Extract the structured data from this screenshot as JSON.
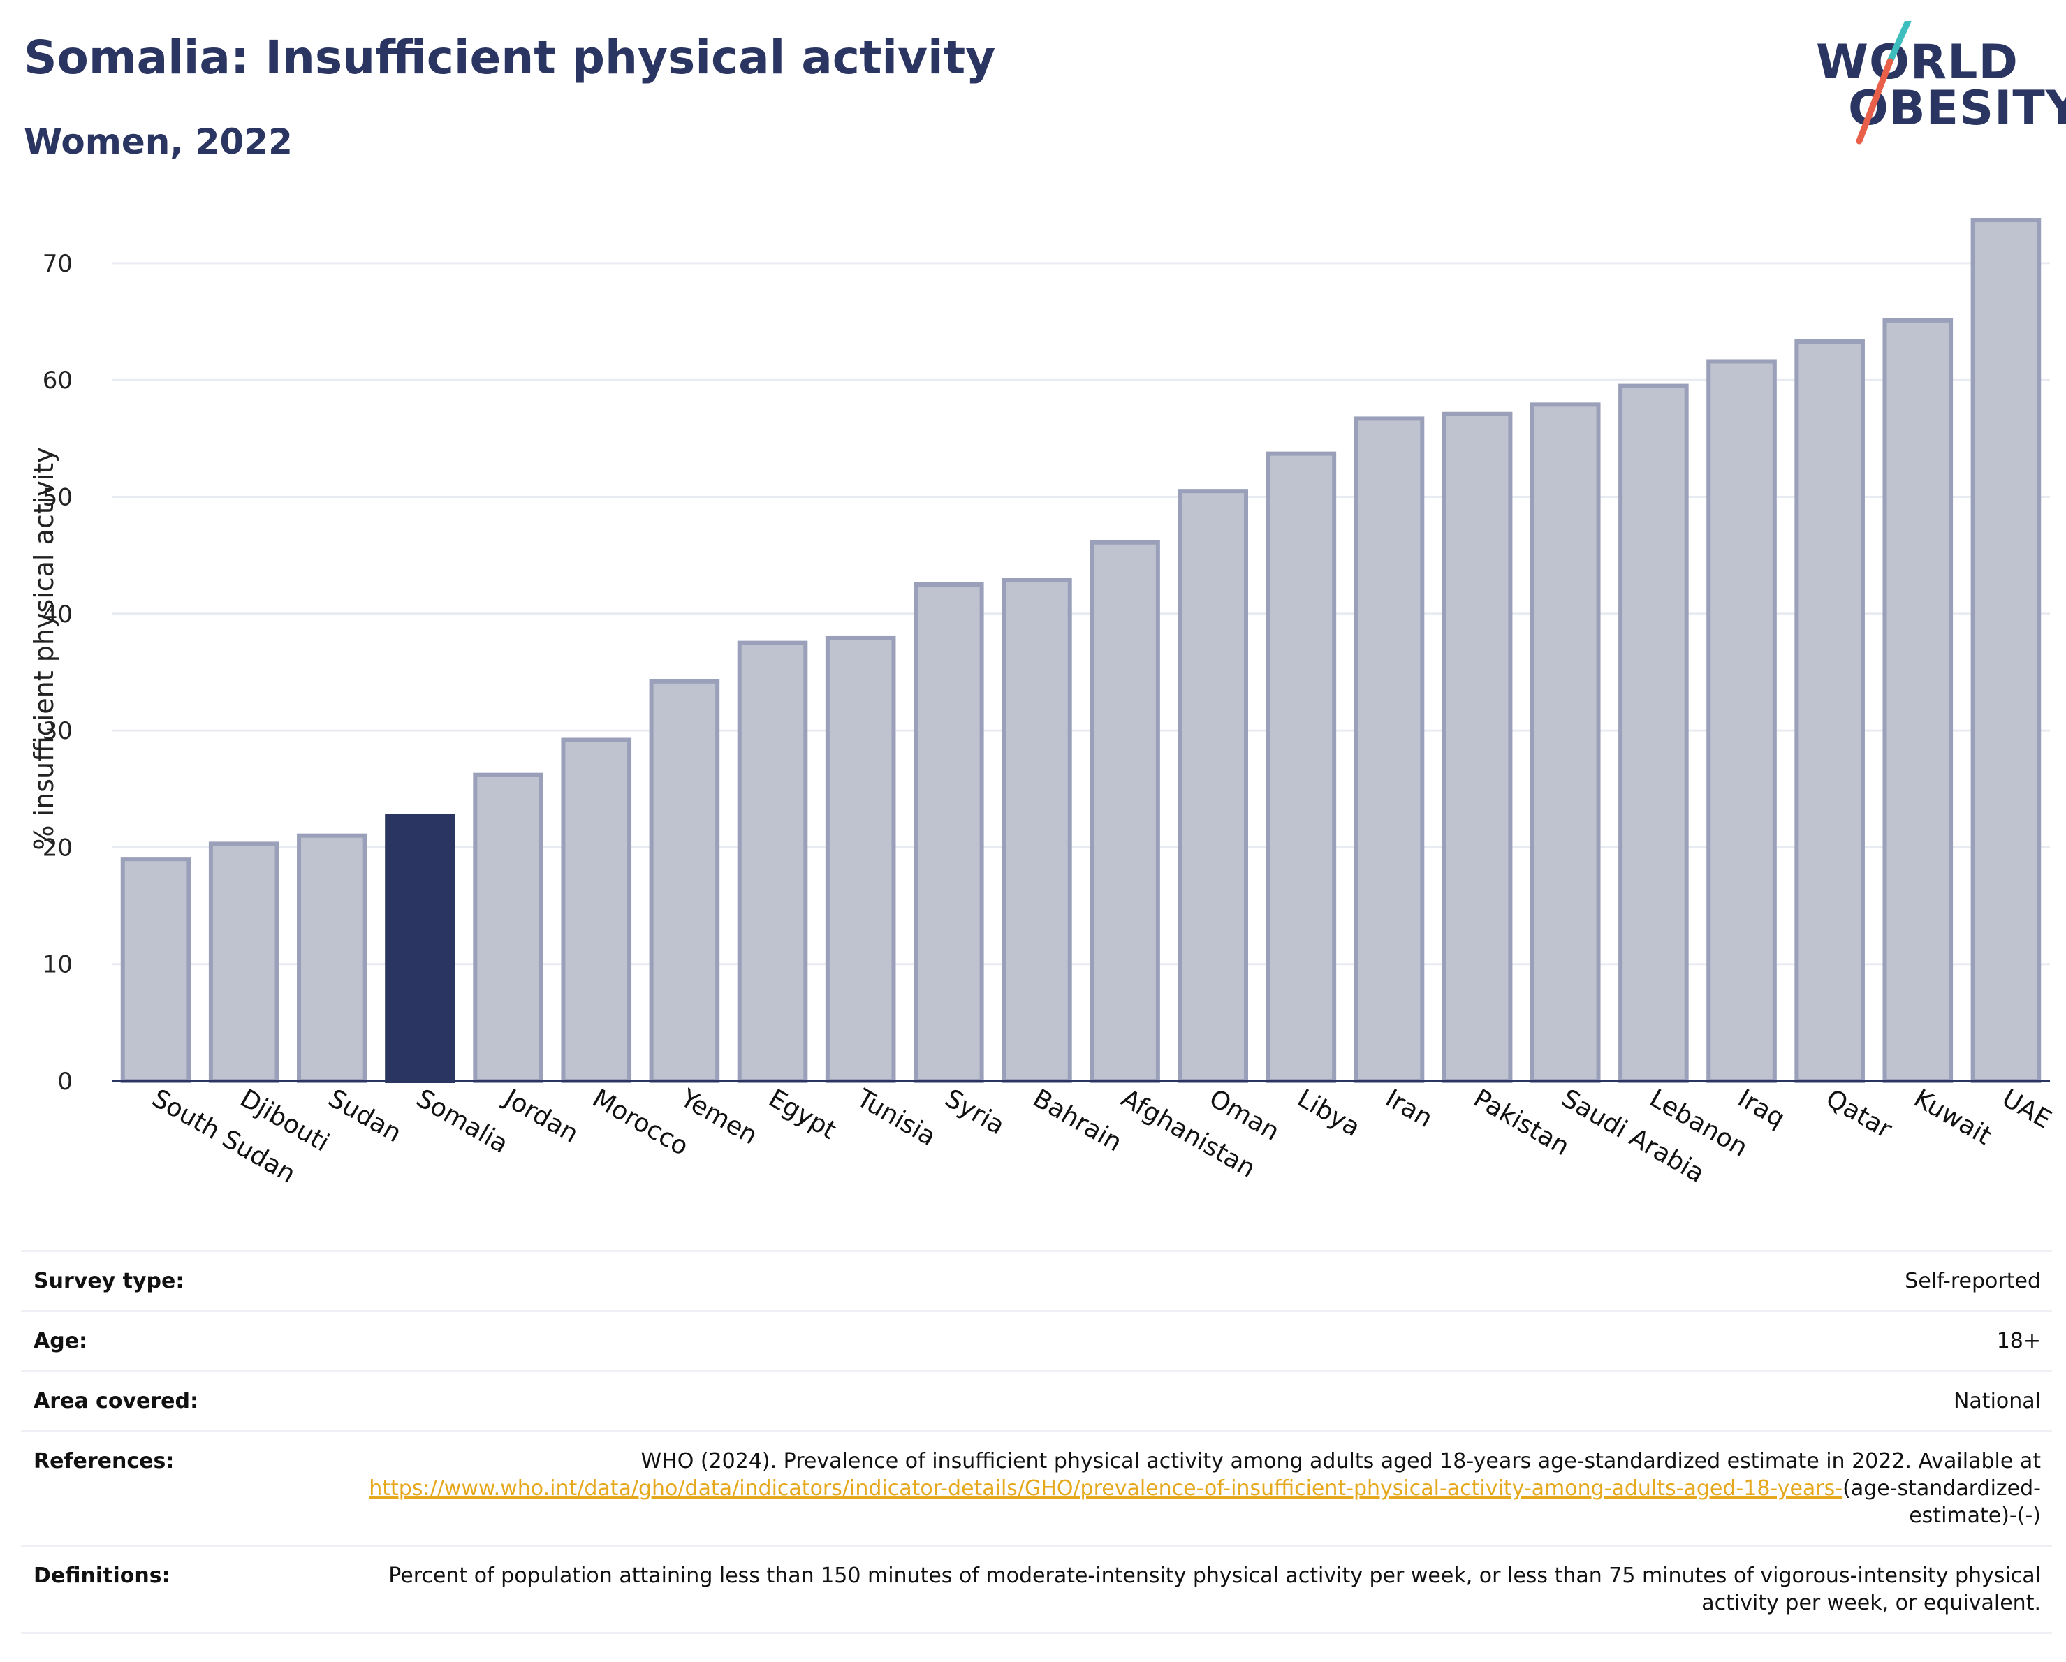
{
  "header": {
    "title": "Somalia: Insufficient physical activity",
    "subtitle": "Women, 2022"
  },
  "logo": {
    "line1": "WORLD",
    "line2": "OBESITY",
    "colors": {
      "text": "#2b3561",
      "slash_top": "#3dbdbd",
      "slash_bottom": "#e8604a"
    }
  },
  "chart_data": {
    "type": "bar",
    "title": "",
    "xlabel": "",
    "ylabel": "% insufficient physical activity",
    "ylim": [
      0,
      74
    ],
    "yticks": [
      0,
      10,
      20,
      30,
      40,
      50,
      60,
      70
    ],
    "grid": true,
    "highlight": "Somalia",
    "categories": [
      "South Sudan",
      "Djibouti",
      "Sudan",
      "Somalia",
      "Jordan",
      "Morocco",
      "Yemen",
      "Egypt",
      "Tunisia",
      "Syria",
      "Bahrain",
      "Afghanistan",
      "Oman",
      "Libya",
      "Iran",
      "Pakistan",
      "Saudi Arabia",
      "Lebanon",
      "Iraq",
      "Qatar",
      "Kuwait",
      "UAE"
    ],
    "values": [
      19.0,
      20.3,
      21.0,
      22.7,
      26.2,
      29.2,
      34.2,
      37.5,
      37.9,
      42.5,
      42.9,
      46.1,
      50.5,
      53.7,
      56.7,
      57.1,
      57.9,
      59.5,
      61.6,
      63.3,
      65.1,
      73.7
    ],
    "colors": {
      "bar": "#bfc3d0",
      "bar_edge": "#9aa0b9",
      "highlight": "#2b3561",
      "axis": "#2b3561",
      "grid": "#e9ebf2"
    }
  },
  "info": {
    "survey_type": {
      "label": "Survey type:",
      "value": "Self-reported"
    },
    "age": {
      "label": "Age:",
      "value": "18+"
    },
    "area": {
      "label": "Area covered:",
      "value": "National"
    },
    "references": {
      "label": "References:",
      "text": "WHO (2024). Prevalence of insufficient physical activity among adults aged 18-years age-standardized estimate in 2022. Available at",
      "link": "https://www.who.int/data/gho/data/indicators/indicator-details/GHO/prevalence-of-insufficient-physical-activity-among-adults-aged-18-years-",
      "suffix": "(age-standardized-estimate)-(-)"
    },
    "definitions": {
      "label": "Definitions:",
      "value": "Percent of population attaining less than 150 minutes of moderate-intensity physical activity per week, or less than 75 minutes of vigorous-intensity physical activity per week, or equivalent."
    }
  }
}
